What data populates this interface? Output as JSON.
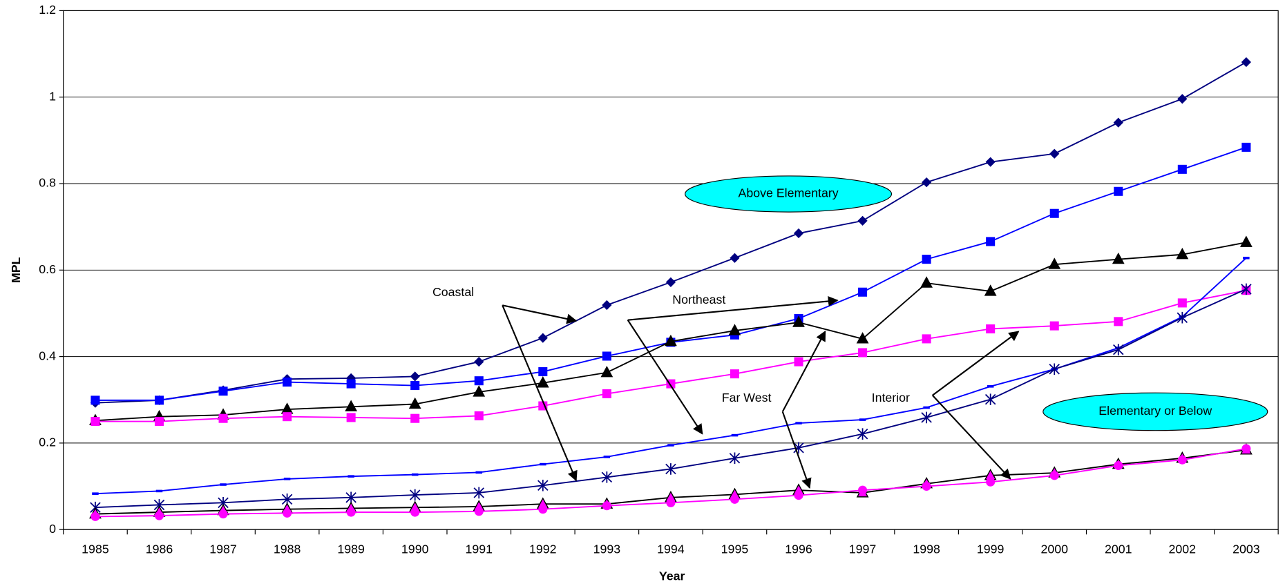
{
  "chart_data": {
    "type": "line",
    "x_label": "Year",
    "y_label": "MPL",
    "categories": [
      "1985",
      "1986",
      "1987",
      "1988",
      "1989",
      "1990",
      "1991",
      "1992",
      "1993",
      "1994",
      "1995",
      "1996",
      "1997",
      "1998",
      "1999",
      "2000",
      "2001",
      "2002",
      "2003"
    ],
    "series": [
      {
        "color": "#000080",
        "marker": "diamond",
        "values": [
          0.293,
          0.299,
          0.322,
          0.348,
          0.35,
          0.354,
          0.388,
          0.443,
          0.519,
          0.572,
          0.628,
          0.685,
          0.714,
          0.803,
          0.85,
          0.869,
          0.941,
          0.996,
          1.081
        ]
      },
      {
        "color": "#0000ff",
        "marker": "square",
        "values": [
          0.299,
          0.299,
          0.32,
          0.341,
          0.337,
          0.333,
          0.344,
          0.365,
          0.401,
          0.433,
          0.45,
          0.488,
          0.549,
          0.625,
          0.666,
          0.731,
          0.782,
          0.833,
          0.884
        ]
      },
      {
        "color": "#000000",
        "marker": "triangle",
        "values": [
          0.252,
          0.261,
          0.265,
          0.278,
          0.284,
          0.29,
          0.318,
          0.339,
          0.363,
          0.435,
          0.46,
          0.479,
          0.441,
          0.57,
          0.551,
          0.613,
          0.625,
          0.636,
          0.664
        ]
      },
      {
        "color": "#ff00ff",
        "marker": "square",
        "values": [
          0.25,
          0.25,
          0.257,
          0.261,
          0.259,
          0.257,
          0.263,
          0.286,
          0.314,
          0.337,
          0.36,
          0.388,
          0.409,
          0.441,
          0.464,
          0.471,
          0.481,
          0.524,
          0.553
        ]
      },
      {
        "color": "#0000ff",
        "marker": "dash",
        "values": [
          0.083,
          0.089,
          0.104,
          0.117,
          0.123,
          0.127,
          0.132,
          0.151,
          0.168,
          0.195,
          0.218,
          0.246,
          0.254,
          0.282,
          0.331,
          0.371,
          0.42,
          0.492,
          0.628
        ]
      },
      {
        "color": "#000080",
        "marker": "asterisk",
        "values": [
          0.051,
          0.057,
          0.062,
          0.07,
          0.074,
          0.08,
          0.085,
          0.102,
          0.121,
          0.14,
          0.165,
          0.189,
          0.221,
          0.259,
          0.301,
          0.371,
          0.416,
          0.49,
          0.556
        ]
      },
      {
        "color": "#000000",
        "marker": "triangle",
        "marker_fill": "#ff00ff",
        "values": [
          0.036,
          0.04,
          0.044,
          0.047,
          0.049,
          0.051,
          0.053,
          0.059,
          0.059,
          0.074,
          0.081,
          0.091,
          0.085,
          0.106,
          0.125,
          0.131,
          0.151,
          0.165,
          0.184
        ]
      },
      {
        "color": "#ff00ff",
        "marker": "circle",
        "values": [
          0.03,
          0.032,
          0.036,
          0.038,
          0.04,
          0.04,
          0.042,
          0.047,
          0.055,
          0.062,
          0.07,
          0.079,
          0.091,
          0.1,
          0.11,
          0.125,
          0.148,
          0.161,
          0.187
        ]
      }
    ],
    "ylim": [
      0,
      1.2
    ],
    "yticks": [
      0,
      0.2,
      0.4,
      0.6,
      0.8,
      1,
      1.2
    ],
    "grid": true,
    "annotations": [
      "Coastal",
      "Northeast",
      "Far West",
      "Interior"
    ],
    "callouts": [
      "Above Elementary",
      "Elementary or Below"
    ],
    "callout_color": "#00ffff"
  }
}
